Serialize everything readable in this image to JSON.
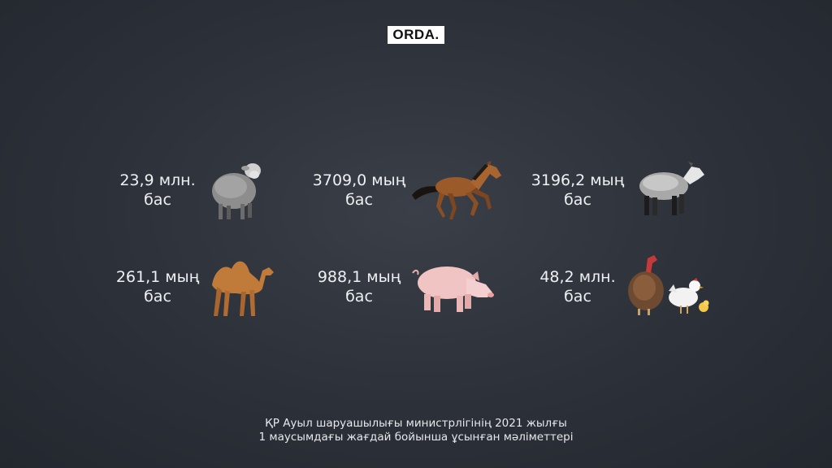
{
  "brand": {
    "logo": "ORDA."
  },
  "stats": [
    {
      "value": "23,9 млн.",
      "unit": "бас",
      "animal_icon": "sheep-icon"
    },
    {
      "value": "3709,0 мың",
      "unit": "бас",
      "animal_icon": "horse-icon"
    },
    {
      "value": "3196,2 мың",
      "unit": "бас",
      "animal_icon": "goat-icon"
    },
    {
      "value": "261,1 мың",
      "unit": "бас",
      "animal_icon": "camel-icon"
    },
    {
      "value": "988,1 мың",
      "unit": "бас",
      "animal_icon": "pig-icon"
    },
    {
      "value": "48,2 млн.",
      "unit": "бас",
      "animal_icon": "poultry-icon"
    }
  ],
  "caption": {
    "line1": "ҚР Ауыл шаруашылығы министрлігінің 2021 жылғы",
    "line2": "1 маусымдағы жағдай бойынша ұсынған мәліметтері"
  },
  "colors": {
    "background": "#2c3038",
    "text": "#eef0f2",
    "logo_bg": "#ffffff"
  }
}
